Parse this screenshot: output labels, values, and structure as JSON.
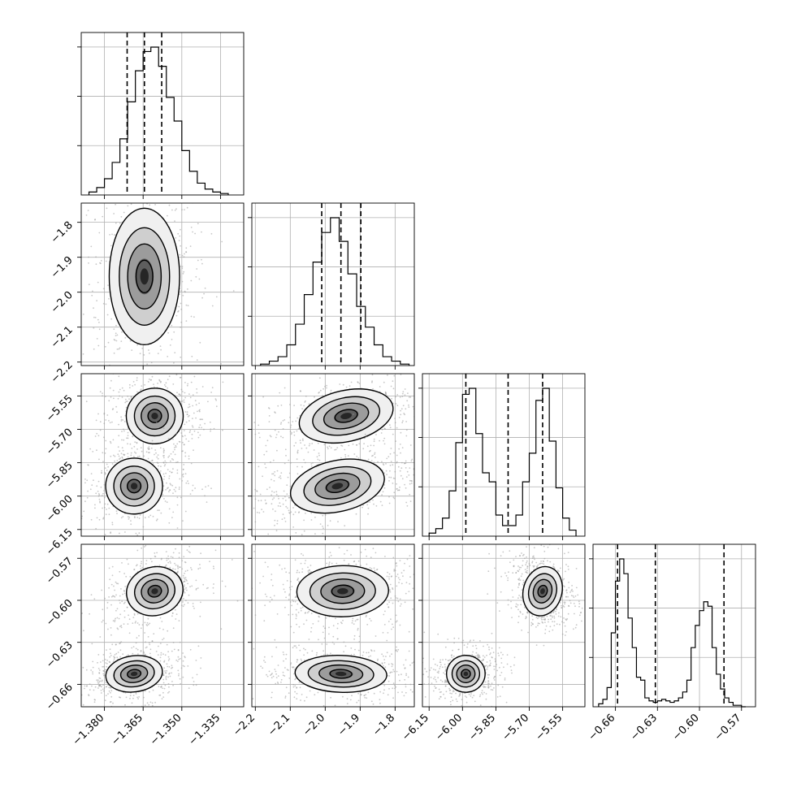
{
  "chart_data": {
    "type": "corner",
    "n_params": 4,
    "grid": true,
    "params": [
      {
        "range": [
          -1.389,
          -1.326
        ],
        "ticks": [
          -1.38,
          -1.365,
          -1.35,
          -1.335
        ],
        "tick_labels": [
          "−1.380",
          "−1.365",
          "−1.350",
          "−1.335"
        ]
      },
      {
        "range": [
          -2.21,
          -1.745
        ],
        "ticks": [
          -2.2,
          -2.1,
          -2.0,
          -1.9,
          -1.8
        ],
        "tick_labels": [
          "−2.2",
          "−2.1",
          "−2.0",
          "−1.9",
          "−1.8"
        ]
      },
      {
        "range": [
          -6.18,
          -5.45
        ],
        "ticks": [
          -6.15,
          -6.0,
          -5.85,
          -5.7,
          -5.55
        ],
        "tick_labels": [
          "−6.15",
          "−6.00",
          "−5.85",
          "−5.70",
          "−5.55"
        ]
      },
      {
        "range": [
          -0.676,
          -0.56
        ],
        "ticks": [
          -0.66,
          -0.63,
          -0.6,
          -0.57
        ],
        "tick_labels": [
          "−0.66",
          "−0.63",
          "−0.60",
          "−0.57"
        ]
      }
    ],
    "histograms": [
      {
        "bins": [
          -1.386,
          -1.383,
          -1.38,
          -1.377,
          -1.374,
          -1.371,
          -1.368,
          -1.365,
          -1.362,
          -1.359,
          -1.356,
          -1.353,
          -1.35,
          -1.347,
          -1.344,
          -1.341,
          -1.338,
          -1.335,
          -1.332
        ],
        "counts": [
          0.02,
          0.05,
          0.11,
          0.22,
          0.38,
          0.63,
          0.84,
          0.97,
          1.0,
          0.87,
          0.66,
          0.5,
          0.3,
          0.16,
          0.08,
          0.04,
          0.02,
          0.01
        ],
        "quantiles": [
          -1.3712,
          -1.3645,
          -1.3578
        ]
      },
      {
        "bins": [
          -2.185,
          -2.16,
          -2.135,
          -2.11,
          -2.085,
          -2.06,
          -2.035,
          -2.01,
          -1.985,
          -1.96,
          -1.935,
          -1.91,
          -1.885,
          -1.86,
          -1.835,
          -1.81,
          -1.785,
          -1.76
        ],
        "counts": [
          0.01,
          0.03,
          0.06,
          0.14,
          0.28,
          0.48,
          0.7,
          0.9,
          1.0,
          0.84,
          0.62,
          0.4,
          0.26,
          0.14,
          0.06,
          0.03,
          0.01
        ],
        "quantiles": [
          -2.01,
          -1.955,
          -1.898
        ]
      },
      {
        "bins": [
          -6.15,
          -6.12,
          -6.09,
          -6.06,
          -6.03,
          -6.0,
          -5.97,
          -5.94,
          -5.91,
          -5.88,
          -5.85,
          -5.82,
          -5.79,
          -5.76,
          -5.73,
          -5.7,
          -5.67,
          -5.64,
          -5.61,
          -5.58,
          -5.55,
          -5.52,
          -5.49
        ],
        "counts": [
          0.02,
          0.05,
          0.12,
          0.3,
          0.62,
          0.94,
          0.98,
          0.68,
          0.42,
          0.36,
          0.14,
          0.07,
          0.07,
          0.14,
          0.36,
          0.55,
          0.9,
          0.98,
          0.63,
          0.32,
          0.12,
          0.04
        ],
        "quantiles": [
          -5.985,
          -5.795,
          -5.64
        ]
      },
      {
        "bins": [
          -0.672,
          -0.669,
          -0.666,
          -0.663,
          -0.66,
          -0.657,
          -0.654,
          -0.651,
          -0.648,
          -0.645,
          -0.642,
          -0.639,
          -0.636,
          -0.633,
          -0.63,
          -0.627,
          -0.624,
          -0.621,
          -0.618,
          -0.615,
          -0.612,
          -0.609,
          -0.606,
          -0.603,
          -0.6,
          -0.597,
          -0.594,
          -0.591,
          -0.588,
          -0.585,
          -0.582,
          -0.579,
          -0.576,
          -0.573,
          -0.57,
          -0.567
        ],
        "counts": [
          0.02,
          0.05,
          0.13,
          0.5,
          0.85,
          1.0,
          0.9,
          0.6,
          0.4,
          0.2,
          0.18,
          0.06,
          0.04,
          0.03,
          0.04,
          0.05,
          0.04,
          0.03,
          0.04,
          0.06,
          0.1,
          0.18,
          0.4,
          0.55,
          0.65,
          0.71,
          0.68,
          0.4,
          0.22,
          0.12,
          0.06,
          0.03,
          0.01,
          0.01,
          0.0
        ],
        "quantiles": [
          -0.6585,
          -0.6315,
          -0.5825
        ]
      }
    ],
    "blobs": {
      "1-0": [
        {
          "cx": -1.3645,
          "cy": -1.955,
          "sx": 0.0052,
          "sy": 0.062,
          "rho": 0.0
        }
      ],
      "2-0": [
        {
          "cx": -1.3605,
          "cy": -5.64,
          "sx": 0.0042,
          "sy": 0.04,
          "rho": 0.15
        },
        {
          "cx": -1.3685,
          "cy": -5.955,
          "sx": 0.0042,
          "sy": 0.04,
          "rho": 0.1
        }
      ],
      "2-1": [
        {
          "cx": -1.94,
          "cy": -5.64,
          "sx": 0.052,
          "sy": 0.04,
          "rho": 0.45
        },
        {
          "cx": -1.965,
          "cy": -5.955,
          "sx": 0.052,
          "sy": 0.04,
          "rho": 0.45
        }
      ],
      "3-0": [
        {
          "cx": -1.3605,
          "cy": -0.5935,
          "sx": 0.0042,
          "sy": 0.0058,
          "rho": 0.35
        },
        {
          "cx": -1.3685,
          "cy": -0.6525,
          "sx": 0.0042,
          "sy": 0.0042,
          "rho": 0.25
        }
      ],
      "3-1": [
        {
          "cx": -1.95,
          "cy": -0.5935,
          "sx": 0.05,
          "sy": 0.0058,
          "rho": 0.05
        },
        {
          "cx": -1.955,
          "cy": -0.6525,
          "sx": 0.05,
          "sy": 0.0042,
          "rho": -0.1
        }
      ],
      "3-2": [
        {
          "cx": -5.64,
          "cy": -0.5935,
          "sx": 0.033,
          "sy": 0.0058,
          "rho": -0.25
        },
        {
          "cx": -5.985,
          "cy": -0.6525,
          "sx": 0.033,
          "sy": 0.0042,
          "rho": 0.1
        }
      ]
    },
    "colors": {
      "line": "#000000",
      "grid": "#b0b0b0",
      "sample": "#9a9a9a"
    }
  }
}
